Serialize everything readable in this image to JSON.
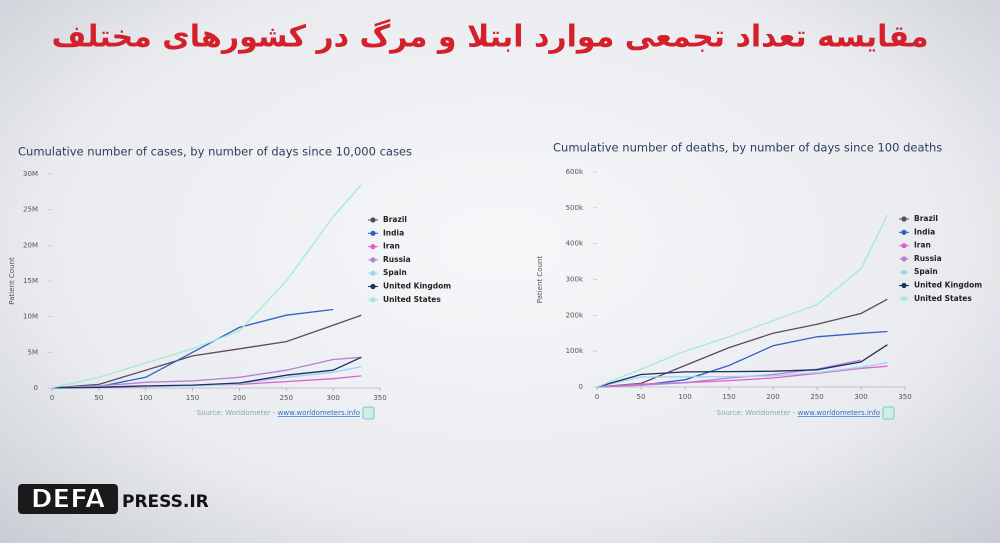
{
  "page_title": "مقایسه تعداد تجمعی موارد ابتلا و مرگ در کشورهای مختلف",
  "logo": {
    "brand": "DEFA",
    "domain": "PRESS.IR"
  },
  "chart_data": [
    {
      "type": "line",
      "title": "Cumulative number of cases, by number of days since 10,000 cases",
      "y_label": "Patient Count",
      "source": "Source: Worldometer - ",
      "source_link": "www.worldometers.info",
      "x": [
        0,
        50,
        100,
        150,
        200,
        250,
        300,
        330
      ],
      "xlim": [
        0,
        350
      ],
      "xticks": [
        0,
        50,
        100,
        150,
        200,
        250,
        300,
        350
      ],
      "ylim": [
        0,
        30000000
      ],
      "yticks": [
        0,
        {
          "value": 5000000,
          "label": "5M"
        },
        {
          "value": 10000000,
          "label": "10M"
        },
        {
          "value": 15000000,
          "label": "15M"
        },
        {
          "value": 20000000,
          "label": "20M"
        },
        {
          "value": 25000000,
          "label": "25M"
        },
        {
          "value": 30000000,
          "label": "30M"
        }
      ],
      "series": [
        {
          "name": "Brazil",
          "color": "#5b4b58",
          "values": [
            10000,
            500000,
            2500000,
            4500000,
            5500000,
            6500000,
            8800000,
            10200000
          ]
        },
        {
          "name": "India",
          "color": "#2f62c0",
          "values": [
            10000,
            200000,
            1500000,
            5000000,
            8500000,
            10200000,
            11000000,
            null
          ]
        },
        {
          "name": "Iran",
          "color": "#e05fcf",
          "values": [
            10000,
            100000,
            200000,
            350000,
            500000,
            900000,
            1300000,
            1700000
          ]
        },
        {
          "name": "Russia",
          "color": "#b67fd6",
          "values": [
            10000,
            300000,
            800000,
            1000000,
            1500000,
            2500000,
            4000000,
            4300000
          ]
        },
        {
          "name": "Spain",
          "color": "#9ad4f0",
          "values": [
            10000,
            200000,
            250000,
            300000,
            600000,
            1500000,
            2200000,
            3000000
          ]
        },
        {
          "name": "United Kingdom",
          "color": "#1b2f66",
          "values": [
            10000,
            100000,
            300000,
            400000,
            700000,
            1800000,
            2500000,
            4300000
          ]
        },
        {
          "name": "United States",
          "color": "#a3ead6",
          "values": [
            10000,
            1500000,
            3500000,
            5500000,
            8000000,
            15000000,
            24000000,
            28500000
          ]
        }
      ]
    },
    {
      "type": "line",
      "title": "Cumulative number of deaths, by number of days since 100 deaths",
      "y_label": "Patient Count",
      "source": "Source: Worldometer - ",
      "source_link": "www.worldometers.info",
      "x": [
        0,
        50,
        100,
        150,
        200,
        250,
        300,
        330
      ],
      "xlim": [
        0,
        350
      ],
      "xticks": [
        0,
        50,
        100,
        150,
        200,
        250,
        300,
        350
      ],
      "ylim": [
        0,
        600000
      ],
      "yticks": [
        0,
        {
          "value": 100000,
          "label": "100k"
        },
        {
          "value": 200000,
          "label": "200k"
        },
        {
          "value": 300000,
          "label": "300k"
        },
        {
          "value": 400000,
          "label": "400k"
        },
        {
          "value": 500000,
          "label": "500k"
        },
        {
          "value": 600000,
          "label": "600k"
        }
      ],
      "series": [
        {
          "name": "Brazil",
          "color": "#5b4b58",
          "values": [
            100,
            10000,
            60000,
            110000,
            150000,
            175000,
            205000,
            245000
          ]
        },
        {
          "name": "India",
          "color": "#2f62c0",
          "values": [
            100,
            5000,
            20000,
            60000,
            115000,
            140000,
            150000,
            155000
          ]
        },
        {
          "name": "Iran",
          "color": "#e05fcf",
          "values": [
            100,
            8000,
            12000,
            18000,
            25000,
            38000,
            52000,
            58000
          ]
        },
        {
          "name": "Russia",
          "color": "#b67fd6",
          "values": [
            100,
            5000,
            12000,
            25000,
            35000,
            50000,
            75000,
            null
          ]
        },
        {
          "name": "Spain",
          "color": "#9ad4f0",
          "values": [
            100,
            28000,
            28500,
            29000,
            31000,
            40000,
            55000,
            68000
          ]
        },
        {
          "name": "United Kingdom",
          "color": "#1b2f66",
          "values": [
            100,
            35000,
            42000,
            43000,
            44000,
            48000,
            70000,
            118000
          ]
        },
        {
          "name": "United States",
          "color": "#a3ead6",
          "values": [
            100,
            50000,
            100000,
            140000,
            185000,
            230000,
            330000,
            480000
          ]
        }
      ]
    }
  ]
}
